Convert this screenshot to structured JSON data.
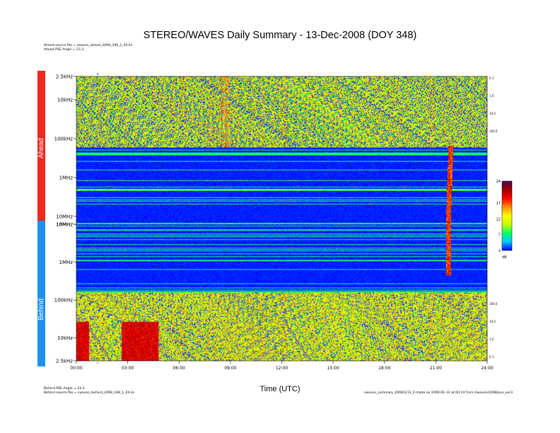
{
  "chart_data": {
    "type": "heatmap",
    "title": "STEREO/WAVES Daily Summary - 13-Dec-2008 (DOY 348)",
    "xlabel": "Time (UTC)",
    "x_ticks": [
      "00:00",
      "03:00",
      "06:00",
      "09:00",
      "12:00",
      "15:00",
      "18:00",
      "21:00",
      "24:00"
    ],
    "xlim_hours": [
      0,
      24
    ],
    "panels": [
      {
        "name": "Ahead",
        "y_ticks": [
          "2.5kHz",
          "10kHz",
          "100kHz",
          "1MHz",
          "10MHz",
          "16MHz"
        ],
        "right_ticks": [
          "0.1",
          "1.0",
          "10.0",
          "100.0"
        ]
      },
      {
        "name": "Behind",
        "y_ticks": [
          "10MHz",
          "1MHz",
          "100kHz",
          "10kHz",
          "2.5kHz"
        ],
        "right_ticks": [
          "100.0",
          "10.0",
          "1.0",
          "0.1"
        ]
      }
    ],
    "colorbar": {
      "ticks": [
        "24",
        "17",
        "12",
        "7",
        "2"
      ],
      "unit": "dB",
      "range": [
        2,
        24
      ]
    },
    "colormap": [
      "#0000ff",
      "#00c8ff",
      "#00ff64",
      "#c8ff00",
      "#ffff00",
      "#ff8c00",
      "#ff0000",
      "#a00000",
      "#500050"
    ]
  },
  "meta": {
    "ahead_source": "Ahead source file = swaves_ahead_2008_348_1_04.lin",
    "ahead_pse": "Ahead PSE Angle = 23.3",
    "behind_pse": "Behind PSE Angle = 23.3",
    "behind_source": "Behind source file = swaves_behind_2008_348_1_04.lin",
    "footer_right": "swaves_summary_20081213_0 made on 2009-01-12 at 00:14 from /swaves/2008/pse_ver3",
    "top_marker": "v",
    "bottom_marker": "^"
  }
}
